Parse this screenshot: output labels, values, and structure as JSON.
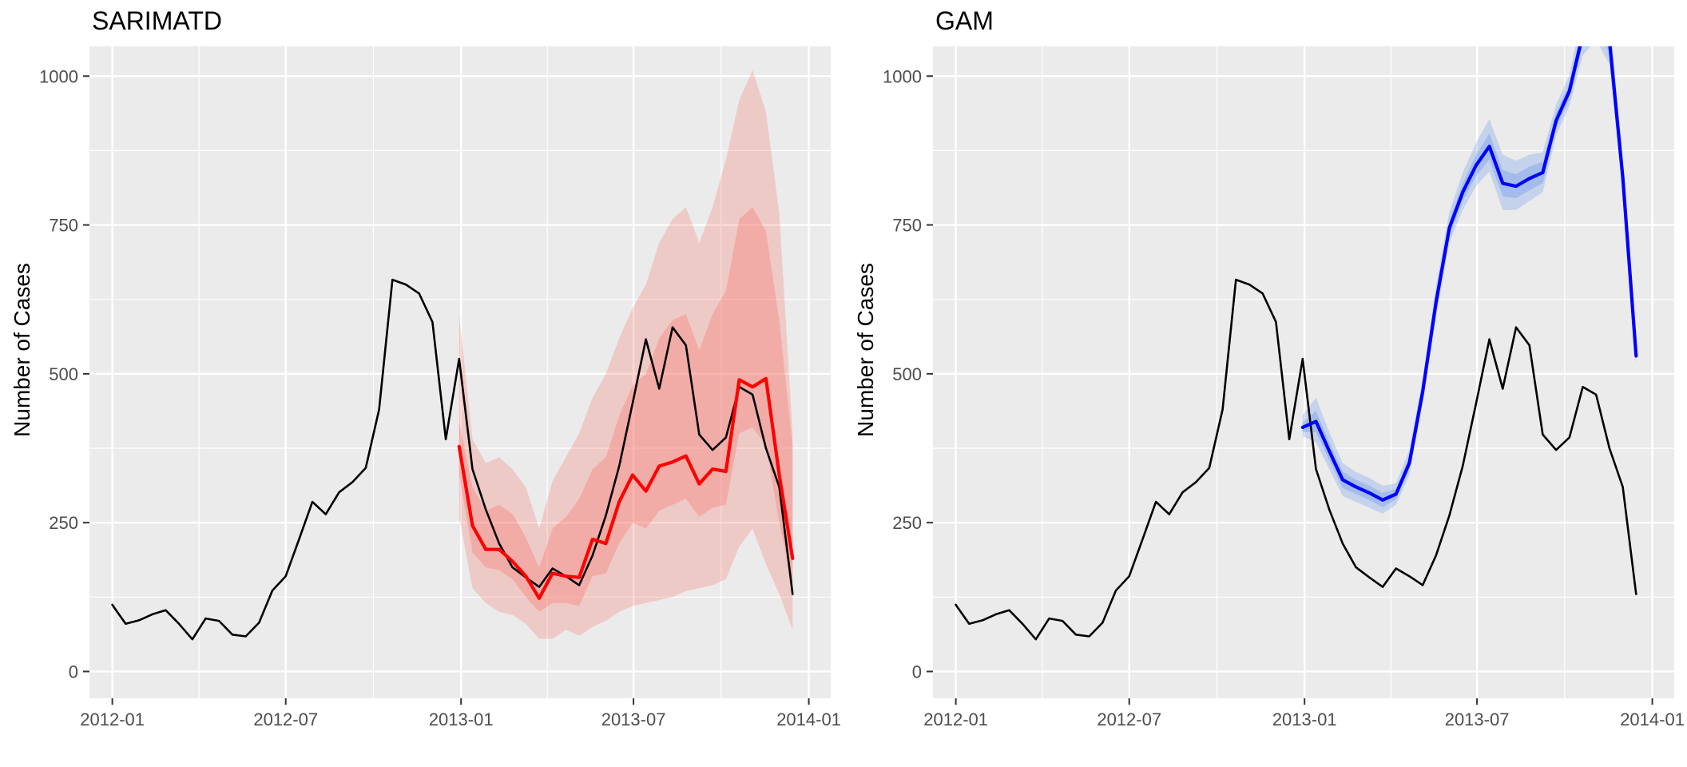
{
  "chart_data": [
    {
      "type": "line",
      "title": "SARIMATD",
      "xlabel": "",
      "ylabel": "Number of Cases",
      "xlim": [
        "2011-12-08",
        "2014-01-24"
      ],
      "ylim": [
        -45,
        1050
      ],
      "x_ticks": [
        "2012-01",
        "2012-07",
        "2013-01",
        "2013-07",
        "2014-01"
      ],
      "y_ticks": [
        0,
        250,
        500,
        750,
        1000
      ],
      "grid": true,
      "legend": "none",
      "panel_background": "#ebebeb",
      "observed_color": "#000000",
      "forecast_color": "#ff0000",
      "band_color": "#f8766d",
      "observed": {
        "x": [
          "2012-01-01",
          "2012-01-15",
          "2012-01-29",
          "2012-02-12",
          "2012-02-26",
          "2012-03-11",
          "2012-03-25",
          "2012-04-08",
          "2012-04-22",
          "2012-05-06",
          "2012-05-20",
          "2012-06-03",
          "2012-06-17",
          "2012-07-01",
          "2012-07-15",
          "2012-07-29",
          "2012-08-12",
          "2012-08-26",
          "2012-09-09",
          "2012-09-23",
          "2012-10-07",
          "2012-10-21",
          "2012-11-04",
          "2012-11-18",
          "2012-12-02",
          "2012-12-16",
          "2012-12-30",
          "2013-01-13",
          "2013-01-27",
          "2013-02-10",
          "2013-02-24",
          "2013-03-10",
          "2013-03-24",
          "2013-04-07",
          "2013-04-21",
          "2013-05-05",
          "2013-05-19",
          "2013-06-02",
          "2013-06-16",
          "2013-06-30",
          "2013-07-14",
          "2013-07-28",
          "2013-08-11",
          "2013-08-25",
          "2013-09-08",
          "2013-09-22",
          "2013-10-06",
          "2013-10-20",
          "2013-11-03",
          "2013-11-17",
          "2013-12-01",
          "2013-12-15"
        ],
        "y": [
          112,
          80,
          86,
          96,
          103,
          80,
          54,
          89,
          85,
          62,
          59,
          82,
          136,
          160,
          222,
          285,
          264,
          301,
          318,
          342,
          440,
          658,
          650,
          635,
          587,
          390,
          525,
          340,
          272,
          215,
          175,
          158,
          142,
          173,
          160,
          145,
          195,
          262,
          345,
          450,
          558,
          475,
          578,
          548,
          398,
          372,
          393,
          478,
          465,
          375,
          310,
          130
        ]
      },
      "forecast": {
        "x": [
          "2012-12-30",
          "2013-01-13",
          "2013-01-27",
          "2013-02-10",
          "2013-02-24",
          "2013-03-10",
          "2013-03-24",
          "2013-04-07",
          "2013-04-21",
          "2013-05-05",
          "2013-05-19",
          "2013-06-02",
          "2013-06-16",
          "2013-06-30",
          "2013-07-14",
          "2013-07-28",
          "2013-08-11",
          "2013-08-25",
          "2013-09-08",
          "2013-09-22",
          "2013-10-06",
          "2013-10-20",
          "2013-11-03",
          "2013-11-17",
          "2013-12-01",
          "2013-12-15"
        ],
        "y": [
          378,
          245,
          205,
          205,
          185,
          160,
          123,
          165,
          160,
          158,
          222,
          215,
          285,
          330,
          303,
          345,
          352,
          362,
          315,
          340,
          336,
          490,
          478,
          492,
          330,
          190
        ],
        "lower_outer": [
          260,
          140,
          115,
          100,
          95,
          80,
          55,
          55,
          70,
          60,
          75,
          85,
          100,
          110,
          115,
          120,
          125,
          135,
          140,
          145,
          155,
          210,
          240,
          180,
          130,
          70
        ],
        "lower_inner": [
          330,
          200,
          175,
          170,
          155,
          125,
          100,
          115,
          115,
          110,
          160,
          165,
          215,
          250,
          240,
          270,
          280,
          290,
          260,
          275,
          280,
          400,
          410,
          380,
          250,
          140
        ],
        "upper_inner": [
          420,
          310,
          270,
          280,
          265,
          225,
          175,
          240,
          260,
          290,
          340,
          360,
          430,
          480,
          500,
          560,
          590,
          600,
          540,
          600,
          640,
          760,
          780,
          740,
          590,
          380
        ],
        "upper_outer": [
          600,
          390,
          350,
          360,
          340,
          310,
          240,
          320,
          360,
          400,
          460,
          500,
          560,
          610,
          650,
          720,
          760,
          780,
          720,
          780,
          860,
          960,
          1010,
          940,
          770,
          400
        ]
      }
    },
    {
      "type": "line",
      "title": "GAM",
      "xlabel": "",
      "ylabel": "Number of Cases",
      "xlim": [
        "2011-12-08",
        "2014-01-24"
      ],
      "ylim": [
        -45,
        1050
      ],
      "x_ticks": [
        "2012-01",
        "2012-07",
        "2013-01",
        "2013-07",
        "2014-01"
      ],
      "y_ticks": [
        0,
        250,
        500,
        750,
        1000
      ],
      "grid": true,
      "legend": "none",
      "panel_background": "#ebebeb",
      "observed_color": "#000000",
      "forecast_color": "#0000ff",
      "band_color": "#6495ed",
      "observed": {
        "x": [
          "2012-01-01",
          "2012-01-15",
          "2012-01-29",
          "2012-02-12",
          "2012-02-26",
          "2012-03-11",
          "2012-03-25",
          "2012-04-08",
          "2012-04-22",
          "2012-05-06",
          "2012-05-20",
          "2012-06-03",
          "2012-06-17",
          "2012-07-01",
          "2012-07-15",
          "2012-07-29",
          "2012-08-12",
          "2012-08-26",
          "2012-09-09",
          "2012-09-23",
          "2012-10-07",
          "2012-10-21",
          "2012-11-04",
          "2012-11-18",
          "2012-12-02",
          "2012-12-16",
          "2012-12-30",
          "2013-01-13",
          "2013-01-27",
          "2013-02-10",
          "2013-02-24",
          "2013-03-10",
          "2013-03-24",
          "2013-04-07",
          "2013-04-21",
          "2013-05-05",
          "2013-05-19",
          "2013-06-02",
          "2013-06-16",
          "2013-06-30",
          "2013-07-14",
          "2013-07-28",
          "2013-08-11",
          "2013-08-25",
          "2013-09-08",
          "2013-09-22",
          "2013-10-06",
          "2013-10-20",
          "2013-11-03",
          "2013-11-17",
          "2013-12-01",
          "2013-12-15"
        ],
        "y": [
          112,
          80,
          86,
          96,
          103,
          80,
          54,
          89,
          85,
          62,
          59,
          82,
          136,
          160,
          222,
          285,
          264,
          301,
          318,
          342,
          440,
          658,
          650,
          635,
          587,
          390,
          525,
          340,
          272,
          215,
          175,
          158,
          142,
          173,
          160,
          145,
          195,
          262,
          345,
          450,
          558,
          475,
          578,
          548,
          398,
          372,
          393,
          478,
          465,
          375,
          310,
          130
        ]
      },
      "forecast": {
        "x": [
          "2012-12-30",
          "2013-01-13",
          "2013-01-27",
          "2013-02-10",
          "2013-02-24",
          "2013-03-10",
          "2013-03-24",
          "2013-04-07",
          "2013-04-21",
          "2013-05-05",
          "2013-05-19",
          "2013-06-02",
          "2013-06-16",
          "2013-06-30",
          "2013-07-14",
          "2013-07-28",
          "2013-08-11",
          "2013-08-25",
          "2013-09-08",
          "2013-09-22",
          "2013-10-06",
          "2013-10-20",
          "2013-11-03",
          "2013-11-17",
          "2013-12-01",
          "2013-12-15"
        ],
        "y": [
          410,
          420,
          370,
          322,
          310,
          300,
          288,
          298,
          350,
          470,
          620,
          745,
          805,
          850,
          882,
          820,
          815,
          828,
          838,
          925,
          975,
          1070,
          1085,
          1060,
          830,
          530
        ],
        "lower_outer": [
          395,
          385,
          340,
          295,
          285,
          275,
          265,
          280,
          330,
          450,
          595,
          720,
          775,
          815,
          840,
          775,
          775,
          790,
          805,
          900,
          950,
          1035,
          1060,
          1020,
          800,
          515
        ],
        "lower_inner": [
          402,
          402,
          355,
          308,
          298,
          288,
          276,
          289,
          340,
          460,
          608,
          732,
          790,
          832,
          860,
          798,
          795,
          808,
          820,
          912,
          962,
          1052,
          1072,
          1040,
          815,
          522
        ],
        "upper_inner": [
          418,
          438,
          385,
          336,
          322,
          312,
          300,
          307,
          360,
          480,
          632,
          758,
          820,
          868,
          904,
          842,
          835,
          848,
          856,
          938,
          988,
          1088,
          1098,
          1080,
          845,
          538
        ],
        "upper_outer": [
          430,
          460,
          402,
          350,
          335,
          325,
          312,
          316,
          372,
          492,
          648,
          772,
          838,
          888,
          928,
          868,
          858,
          868,
          872,
          952,
          1002,
          1108,
          1112,
          1102,
          862,
          548
        ]
      }
    }
  ]
}
